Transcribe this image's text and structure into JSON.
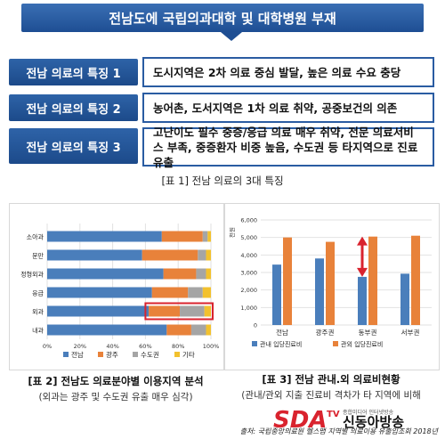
{
  "header": {
    "title": "전남도에 국립의과대학 및 대학병원 부재"
  },
  "features": [
    {
      "label": "전남 의료의 특징 1",
      "text": "도시지역은 2차 의료 중심 발달, 높은 의료 수요 충당"
    },
    {
      "label": "전남 의료의 특징 2",
      "text": "농어촌, 도서지역은 1차 의료 취약, 공중보건의 의존"
    },
    {
      "label": "전남 의료의 특징 3",
      "text": "고난이도 필수 중증/응급 의료 매우 취약, 전문 의료서비스 부족, 중증환자 비중 높음, 수도권 등 타지역으로 진료 유출"
    }
  ],
  "table1_caption": "[표 1] 전남 의료의 3대 특징",
  "colors": {
    "jeonnam": "#4a7ebb",
    "gwangju": "#e8823a",
    "capital": "#a5a5a5",
    "other": "#f2c12e",
    "highlight": "#d9232e"
  },
  "chart_data": [
    {
      "type": "bar",
      "orientation": "horizontal",
      "stacked": true,
      "categories": [
        "소아과",
        "분만",
        "정형외과",
        "응급",
        "외과",
        "내과"
      ],
      "series": [
        {
          "name": "전남",
          "values": [
            70,
            58,
            71,
            64,
            62,
            73
          ]
        },
        {
          "name": "광주",
          "values": [
            25,
            34,
            20,
            22,
            19,
            15
          ]
        },
        {
          "name": "수도권",
          "values": [
            3,
            5,
            6,
            9,
            15,
            9
          ]
        },
        {
          "name": "기타",
          "values": [
            2,
            3,
            3,
            5,
            4,
            3
          ]
        }
      ],
      "xticks": [
        "0%",
        "20%",
        "40%",
        "60%",
        "80%",
        "100%"
      ],
      "xlim": [
        0,
        100
      ],
      "legend": "bottom",
      "highlight_category": "외과"
    },
    {
      "type": "bar",
      "categories": [
        "전남",
        "광주권",
        "동부권",
        "서부권"
      ],
      "series": [
        {
          "name": "관내 입당진료비",
          "values": [
            3450,
            3800,
            2750,
            2930
          ]
        },
        {
          "name": "관외 입당진료비",
          "values": [
            5000,
            4750,
            5050,
            5100
          ]
        }
      ],
      "ylabel": "천원",
      "yticks": [
        "0",
        "1,000",
        "2,000",
        "3,000",
        "4,000",
        "5,000",
        "6,000"
      ],
      "ylim": [
        0,
        6000
      ],
      "legend": "bottom",
      "highlight_category": "동부권"
    }
  ],
  "table2": {
    "caption": "[표 2] 전남도 의료분야별 이용지역 분석",
    "sub": "(외과는 광주 및 수도권 유출 매우 심각)"
  },
  "table3": {
    "caption": "[표 3] 전남 관내.외 의료비현황",
    "sub": "(관내/관외 지출 진료비 격차가 타 지역에 비해"
  },
  "logo": {
    "brand": "SDA",
    "tv": "TV",
    "name": "신동아방송",
    "tagline": "종합미디어 인터넷방송"
  },
  "source": "출처: 국립중앙의료원 헬스맵 지역별 의료이용 유출입조회 2018년"
}
